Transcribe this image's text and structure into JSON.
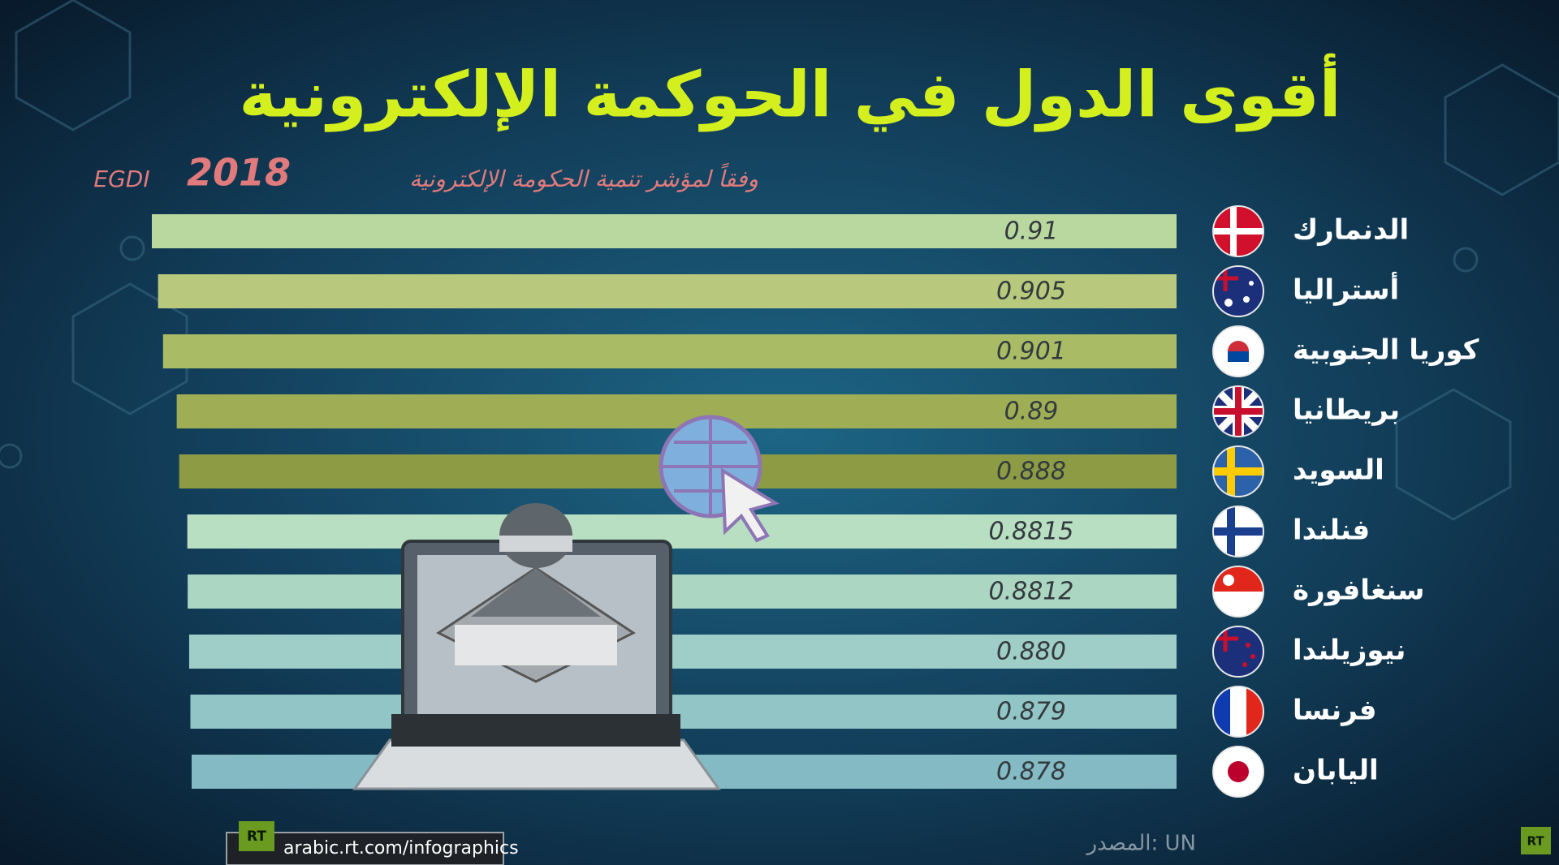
{
  "chart_data": {
    "type": "bar",
    "orientation": "horizontal",
    "title": "أقوى الدول في الحوكمة الإلكترونية",
    "subtitle": "وفقاً لمؤشر تنمية الحكومة الإلكترونية",
    "year": "2018",
    "index_name": "EGDI",
    "categories": [
      "الدنمارك",
      "أستراليا",
      "كوريا الجنوبية",
      "بريطانيا",
      "السويد",
      "فنلندا",
      "سنغافورة",
      "نيوزيلندا",
      "فرنسا",
      "اليابان"
    ],
    "series": [
      {
        "values": [
          0.91,
          0.905,
          0.901,
          0.89,
          0.888,
          0.8815,
          0.8812,
          0.88,
          0.879,
          0.878
        ],
        "value_labels": [
          "0.91",
          "0.905",
          "0.901",
          "0.89",
          "0.888",
          "0.8815",
          "0.8812",
          "0.880",
          "0.879",
          "0.878"
        ],
        "colors": [
          "#b9d89f",
          "#b8c87c",
          "#aabb66",
          "#9fae55",
          "#8e9b45",
          "#b8dfc2",
          "#abd6c2",
          "#9fcdc7",
          "#92c5c6",
          "#83bac3"
        ]
      }
    ],
    "xlim": [
      0.086,
      0.91
    ]
  },
  "source": "المصدر: UN",
  "footer": {
    "url": "arabic.rt.com/infographics",
    "logo": "RT"
  }
}
